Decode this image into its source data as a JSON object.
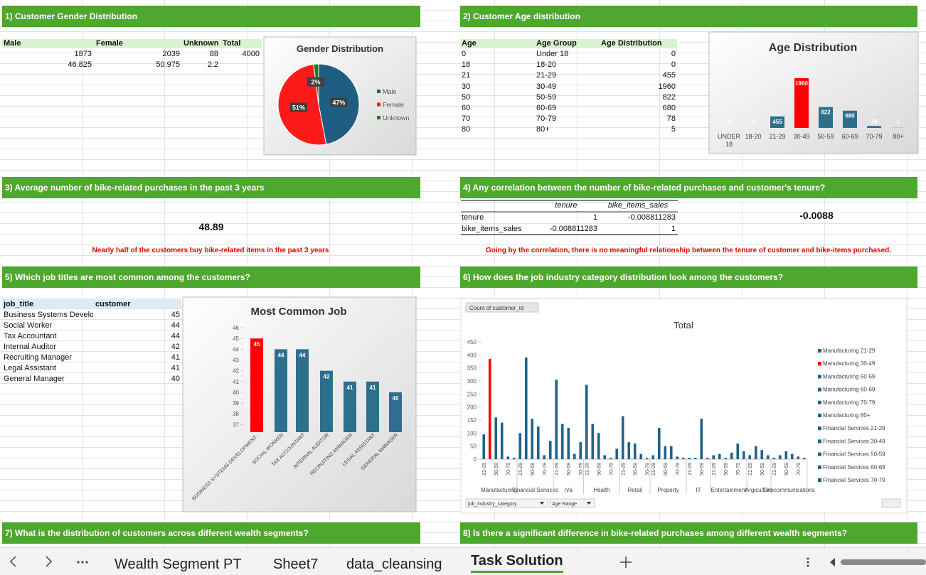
{
  "tabs": [
    "Wealth Segment PT",
    "Sheet7",
    "data_cleansing",
    "Task Solution"
  ],
  "gender": {
    "title": "1) Customer Gender Distribution",
    "table": {
      "headers": [
        "Male",
        "Female",
        "Unknown",
        "Total"
      ],
      "rows": [
        [
          1873,
          2039,
          88,
          4000
        ],
        [
          46.825,
          50.975,
          2.2
        ]
      ]
    },
    "chart": {
      "type": "pie",
      "title": "Gender Distribution",
      "categories": [
        "Male",
        "Female",
        "Unknown"
      ],
      "values": [
        47,
        51,
        2
      ],
      "value_labels": [
        "47%",
        "51%",
        "2%"
      ],
      "colors": [
        "#1f5e82",
        "#ff1a1a",
        "#1e7a1e"
      ],
      "legend": "right"
    }
  },
  "age": {
    "title": "2) Customer Age distribution",
    "table": {
      "headers": [
        "Age",
        "Age Group",
        "Age Distribution"
      ],
      "rows": [
        [
          0,
          "Under 18",
          0
        ],
        [
          18,
          "18-20",
          0
        ],
        [
          21,
          "21-29",
          455
        ],
        [
          30,
          "30-49",
          1960
        ],
        [
          50,
          "50-59",
          822
        ],
        [
          60,
          "60-69",
          680
        ],
        [
          70,
          "70-79",
          78
        ],
        [
          80,
          "80+",
          5
        ]
      ]
    },
    "chart": {
      "type": "bar",
      "title": "Age Distribution",
      "categories": [
        "UNDER 18",
        "18-20",
        "21-29",
        "30-49",
        "50-59",
        "60-69",
        "70-79",
        "80+"
      ],
      "values": [
        0,
        0,
        455,
        1960,
        822,
        680,
        78,
        5
      ],
      "colors": [
        "#2e6f8e",
        "#2e6f8e",
        "#2e6f8e",
        "#ff0000",
        "#2e6f8e",
        "#2e6f8e",
        "#2e6f8e",
        "#2e6f8e"
      ]
    }
  },
  "purchases": {
    "title": "3) Average number of bike-related purchases in the past 3 years",
    "value": 48.89,
    "note": "Nearly half of the customers buy bike-related items in the past 3 years"
  },
  "correlation": {
    "title": "4) Any correlation between the number of bike-related purchases and customer's tenure?",
    "headers": [
      "tenure",
      "bike_items_sales"
    ],
    "rows": [
      {
        "label": "tenure",
        "values": [
          1,
          -0.008811283
        ]
      },
      {
        "label": "bike_items_sales",
        "values": [
          -0.008811283,
          1
        ]
      }
    ],
    "result": -0.0088,
    "note": "Going by the correlation, there is no meaningful relationship between the tenure of customer and bike-items purchased."
  },
  "jobs": {
    "title": "5) Which job titles are most common among the customers?",
    "table": {
      "headers": [
        "job_title",
        "customer"
      ],
      "rows": [
        [
          "Business Systems Develop",
          45
        ],
        [
          "Social Worker",
          44
        ],
        [
          "Tax Accountant",
          44
        ],
        [
          "Internal Auditor",
          42
        ],
        [
          "Recruiting Manager",
          41
        ],
        [
          "Legal Assistant",
          41
        ],
        [
          "General Manager",
          40
        ]
      ]
    },
    "chart": {
      "type": "bar",
      "title": "Most Common Job",
      "categories": [
        "BUSINESS SYSTEMS DEVELOPMENT...",
        "SOCIAL WORKER",
        "TAX ACCOUNTANT",
        "INTERNAL AUDITOR",
        "RECRUITING MANAGER",
        "LEGAL ASSISTANT",
        "GENERAL MANAGER"
      ],
      "values": [
        45,
        44,
        44,
        42,
        41,
        41,
        40
      ],
      "colors": [
        "#ff0000",
        "#2e6f8e",
        "#2e6f8e",
        "#2e6f8e",
        "#2e6f8e",
        "#2e6f8e",
        "#2e6f8e"
      ],
      "ylim": [
        36.3,
        46.4
      ],
      "yticks": [
        37,
        38,
        39,
        40,
        41,
        42,
        43,
        44,
        45,
        46
      ]
    }
  },
  "industry": {
    "title": "6) How does the job industry category distribution look among the customers?",
    "chart": {
      "type": "bar",
      "field_button": "Count of customer_id",
      "title": "Total",
      "ylim": [
        0,
        450
      ],
      "yticks": [
        0,
        50,
        100,
        150,
        200,
        250,
        300,
        350,
        400,
        450
      ],
      "color": "#1f6388",
      "groups": [
        {
          "name": "Manufacturing",
          "categories": [
            "21-29",
            null,
            "50-59",
            null,
            "70-79",
            null
          ],
          "values": [
            95,
            385,
            160,
            140,
            10,
            5
          ],
          "colors": [
            "#1f6388",
            "#ff0000",
            "#1f6388",
            "#1f6388",
            "#1f6388",
            "#1f6388"
          ]
        },
        {
          "name": "Financial Services",
          "categories": [
            "21-29",
            null,
            "50-59",
            null,
            "70-79",
            null
          ],
          "values": [
            100,
            390,
            155,
            125,
            15,
            70
          ]
        },
        {
          "name": "n/a",
          "categories": [
            "21-29",
            null,
            "50-59",
            null,
            "70-79"
          ],
          "values": [
            305,
            135,
            120,
            20,
            65
          ]
        },
        {
          "name": "Health",
          "categories": [
            "21-29",
            null,
            "50-59",
            null,
            "70-79",
            null
          ],
          "values": [
            285,
            135,
            100,
            15,
            5,
            40
          ]
        },
        {
          "name": "Retail",
          "categories": [
            "21-29",
            null,
            "50-59",
            null,
            "70-79"
          ],
          "values": [
            165,
            65,
            60,
            20,
            5
          ]
        },
        {
          "name": "Property",
          "categories": [
            "21-29",
            null,
            "50-59",
            null,
            "70-79",
            null
          ],
          "values": [
            15,
            120,
            50,
            50,
            10,
            5
          ]
        },
        {
          "name": "IT",
          "categories": [
            "21-29",
            null,
            "50-59",
            null
          ],
          "values": [
            5,
            5,
            155,
            5
          ]
        },
        {
          "name": "Entertainment",
          "categories": [
            "21-29",
            null,
            "50-59",
            null,
            "70-79",
            null
          ],
          "values": [
            15,
            20,
            5,
            25,
            60,
            30
          ]
        },
        {
          "name": "Argiculture",
          "categories": [
            "21-29",
            null,
            "50-59",
            null
          ],
          "values": [
            15,
            50,
            35,
            15
          ]
        },
        {
          "name": "Telecommunications",
          "categories": [
            "21-29",
            null,
            "50-59",
            null,
            "70-79",
            null
          ],
          "values": [
            5,
            15,
            30,
            20,
            10,
            5
          ]
        }
      ],
      "legend": [
        {
          "name": "Manufacturing 21-29",
          "color": "#1f6388"
        },
        {
          "name": "Manufacturing 30-49",
          "color": "#ff0000"
        },
        {
          "name": "Manufacturing 50-59",
          "color": "#1f6388"
        },
        {
          "name": "Manufacturing 60-69",
          "color": "#1f6388"
        },
        {
          "name": "Manufacturing 70-79",
          "color": "#1f6388"
        },
        {
          "name": "Manufacturing 80+",
          "color": "#1f6388"
        },
        {
          "name": "Financial Services 21-29",
          "color": "#1f6388"
        },
        {
          "name": "Financial Services 30-49",
          "color": "#1f6388"
        },
        {
          "name": "Financial Services 50-59",
          "color": "#1f6388"
        },
        {
          "name": "Financial Services 60-69",
          "color": "#1f6388"
        },
        {
          "name": "Financial Services 70-79",
          "color": "#1f6388"
        }
      ],
      "filters": [
        "job_industry_category",
        "Age Range"
      ]
    }
  },
  "wealth": {
    "title": "7) What is the distribution of customers across different wealth segments?"
  },
  "wealth_purchases": {
    "title": "8) Is there a significant difference in bike-related purchases among different wealth segments?"
  }
}
